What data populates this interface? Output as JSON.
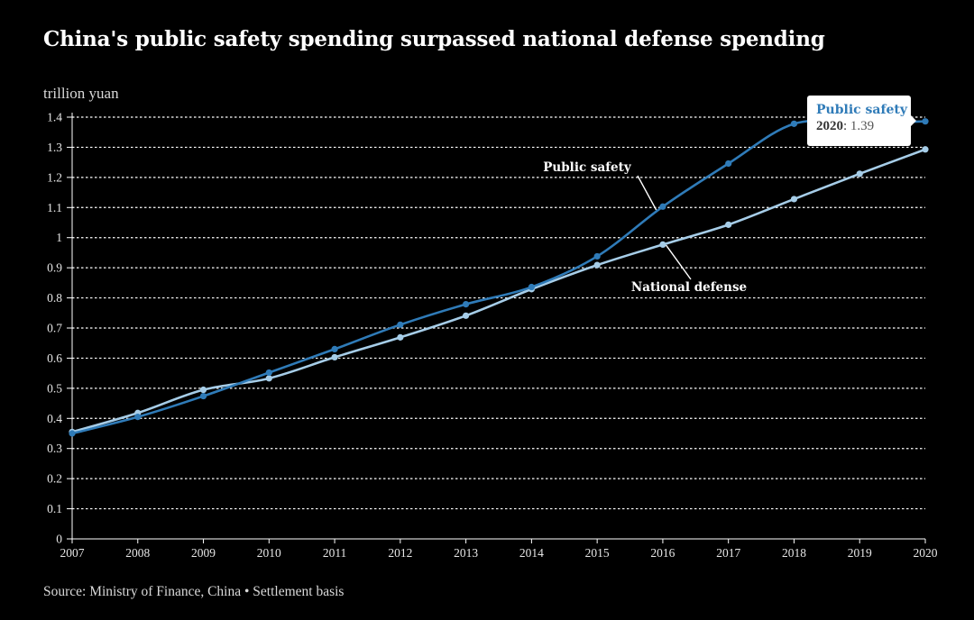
{
  "title": "China's public safety spending surpassed national defense spending",
  "y_unit": "trillion yuan",
  "source": "Source: Ministry of Finance, China • Settlement basis",
  "colors": {
    "public_safety": "#2f7bb8",
    "national_defense": "#a6cde8",
    "background": "#000000",
    "grid": "#ffffff"
  },
  "tooltip": {
    "series": "Public safety",
    "year": "2020",
    "value": "1.39"
  },
  "chart_data": {
    "type": "line",
    "x": [
      2007,
      2008,
      2009,
      2010,
      2011,
      2012,
      2013,
      2014,
      2015,
      2016,
      2017,
      2018,
      2019,
      2020
    ],
    "xlim": [
      2007,
      2020
    ],
    "ylim": [
      0,
      1.4
    ],
    "yticks": [
      "0",
      "0.1",
      "0.2",
      "0.3",
      "0.4",
      "0.5",
      "0.6",
      "0.7",
      "0.8",
      "0.9",
      "1",
      "1.1",
      "1.2",
      "1.3",
      "1.4"
    ],
    "xticks": [
      "2007",
      "2008",
      "2009",
      "2010",
      "2011",
      "2012",
      "2013",
      "2014",
      "2015",
      "2016",
      "2017",
      "2018",
      "2019",
      "2020"
    ],
    "grid": "horizontal dotted",
    "series": [
      {
        "name": "Public safety",
        "color_key": "public_safety",
        "values": [
          0.35,
          0.405,
          0.474,
          0.552,
          0.63,
          0.711,
          0.779,
          0.836,
          0.938,
          1.103,
          1.246,
          1.378,
          1.38,
          1.386
        ]
      },
      {
        "name": "National defense",
        "color_key": "national_defense",
        "values": [
          0.355,
          0.418,
          0.495,
          0.533,
          0.603,
          0.669,
          0.741,
          0.829,
          0.909,
          0.977,
          1.043,
          1.128,
          1.212,
          1.293
        ]
      }
    ]
  }
}
